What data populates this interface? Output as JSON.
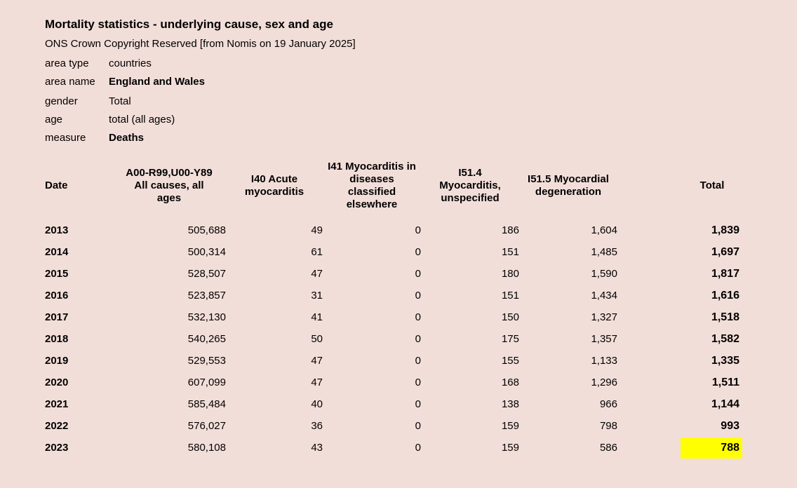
{
  "colors": {
    "background": "#f2ded9",
    "highlight": "#ffff00",
    "text": "#000000"
  },
  "header": {
    "title": "Mortality statistics - underlying cause, sex and age",
    "source_line": "ONS Crown Copyright Reserved [from Nomis on 19 January 2025]"
  },
  "metadata": {
    "items": [
      {
        "label": "area type",
        "value": "countries",
        "bold_value": false,
        "gap_above": false
      },
      {
        "label": "area name",
        "value": "England and Wales",
        "bold_value": true,
        "gap_above": false
      },
      {
        "label": "gender",
        "value": "Total",
        "bold_value": false,
        "gap_above": true
      },
      {
        "label": "age",
        "value": "total (all ages)",
        "bold_value": false,
        "gap_above": false
      },
      {
        "label": "measure",
        "value": "Deaths",
        "bold_value": true,
        "gap_above": false
      }
    ]
  },
  "table": {
    "column_headers": [
      "Date",
      "A00-R99,U00-Y89 All causes, all ages",
      "I40 Acute myocarditis",
      "I41 Myocarditis in diseases classified elsewhere",
      "I51.4 Myocarditis, unspecified",
      "I51.5 Myocardial degeneration",
      "Total"
    ],
    "rows": [
      {
        "date": "2013",
        "all_causes": "505,688",
        "i40": "49",
        "i41": "0",
        "i514": "186",
        "i515": "1,604",
        "total": "1,839",
        "total_highlighted": false
      },
      {
        "date": "2014",
        "all_causes": "500,314",
        "i40": "61",
        "i41": "0",
        "i514": "151",
        "i515": "1,485",
        "total": "1,697",
        "total_highlighted": false
      },
      {
        "date": "2015",
        "all_causes": "528,507",
        "i40": "47",
        "i41": "0",
        "i514": "180",
        "i515": "1,590",
        "total": "1,817",
        "total_highlighted": false
      },
      {
        "date": "2016",
        "all_causes": "523,857",
        "i40": "31",
        "i41": "0",
        "i514": "151",
        "i515": "1,434",
        "total": "1,616",
        "total_highlighted": false
      },
      {
        "date": "2017",
        "all_causes": "532,130",
        "i40": "41",
        "i41": "0",
        "i514": "150",
        "i515": "1,327",
        "total": "1,518",
        "total_highlighted": false
      },
      {
        "date": "2018",
        "all_causes": "540,265",
        "i40": "50",
        "i41": "0",
        "i514": "175",
        "i515": "1,357",
        "total": "1,582",
        "total_highlighted": false
      },
      {
        "date": "2019",
        "all_causes": "529,553",
        "i40": "47",
        "i41": "0",
        "i514": "155",
        "i515": "1,133",
        "total": "1,335",
        "total_highlighted": false
      },
      {
        "date": "2020",
        "all_causes": "607,099",
        "i40": "47",
        "i41": "0",
        "i514": "168",
        "i515": "1,296",
        "total": "1,511",
        "total_highlighted": false
      },
      {
        "date": "2021",
        "all_causes": "585,484",
        "i40": "40",
        "i41": "0",
        "i514": "138",
        "i515": "966",
        "total": "1,144",
        "total_highlighted": false
      },
      {
        "date": "2022",
        "all_causes": "576,027",
        "i40": "36",
        "i41": "0",
        "i514": "159",
        "i515": "798",
        "total": "993",
        "total_highlighted": false
      },
      {
        "date": "2023",
        "all_causes": "580,108",
        "i40": "43",
        "i41": "0",
        "i514": "159",
        "i515": "586",
        "total": "788",
        "total_highlighted": true
      }
    ]
  }
}
